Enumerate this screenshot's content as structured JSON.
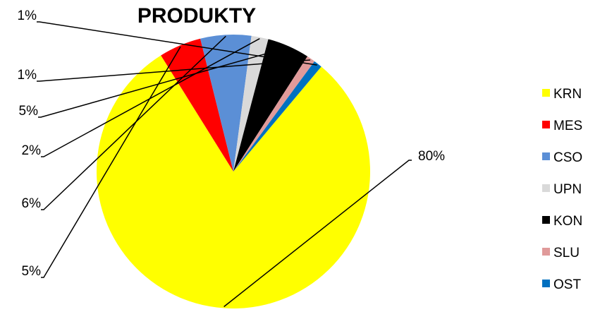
{
  "chart_data": {
    "type": "pie",
    "title": "PRODUKTY",
    "slices": [
      {
        "name": "KRN",
        "label": "80%",
        "value": 80,
        "color": "#FFFF00"
      },
      {
        "name": "MES",
        "label": "5%",
        "value": 5,
        "color": "#FF0000"
      },
      {
        "name": "CSO",
        "label": "6%",
        "value": 6,
        "color": "#5B8FD6"
      },
      {
        "name": "UPN",
        "label": "2%",
        "value": 2,
        "color": "#D9D9D9"
      },
      {
        "name": "KON",
        "label": "5%",
        "value": 5,
        "color": "#000000"
      },
      {
        "name": "SLU",
        "label": "1%",
        "value": 1,
        "color": "#E09A9A"
      },
      {
        "name": "OST",
        "label": "1%",
        "value": 1,
        "color": "#0070C0"
      }
    ],
    "legend_position": "right"
  }
}
